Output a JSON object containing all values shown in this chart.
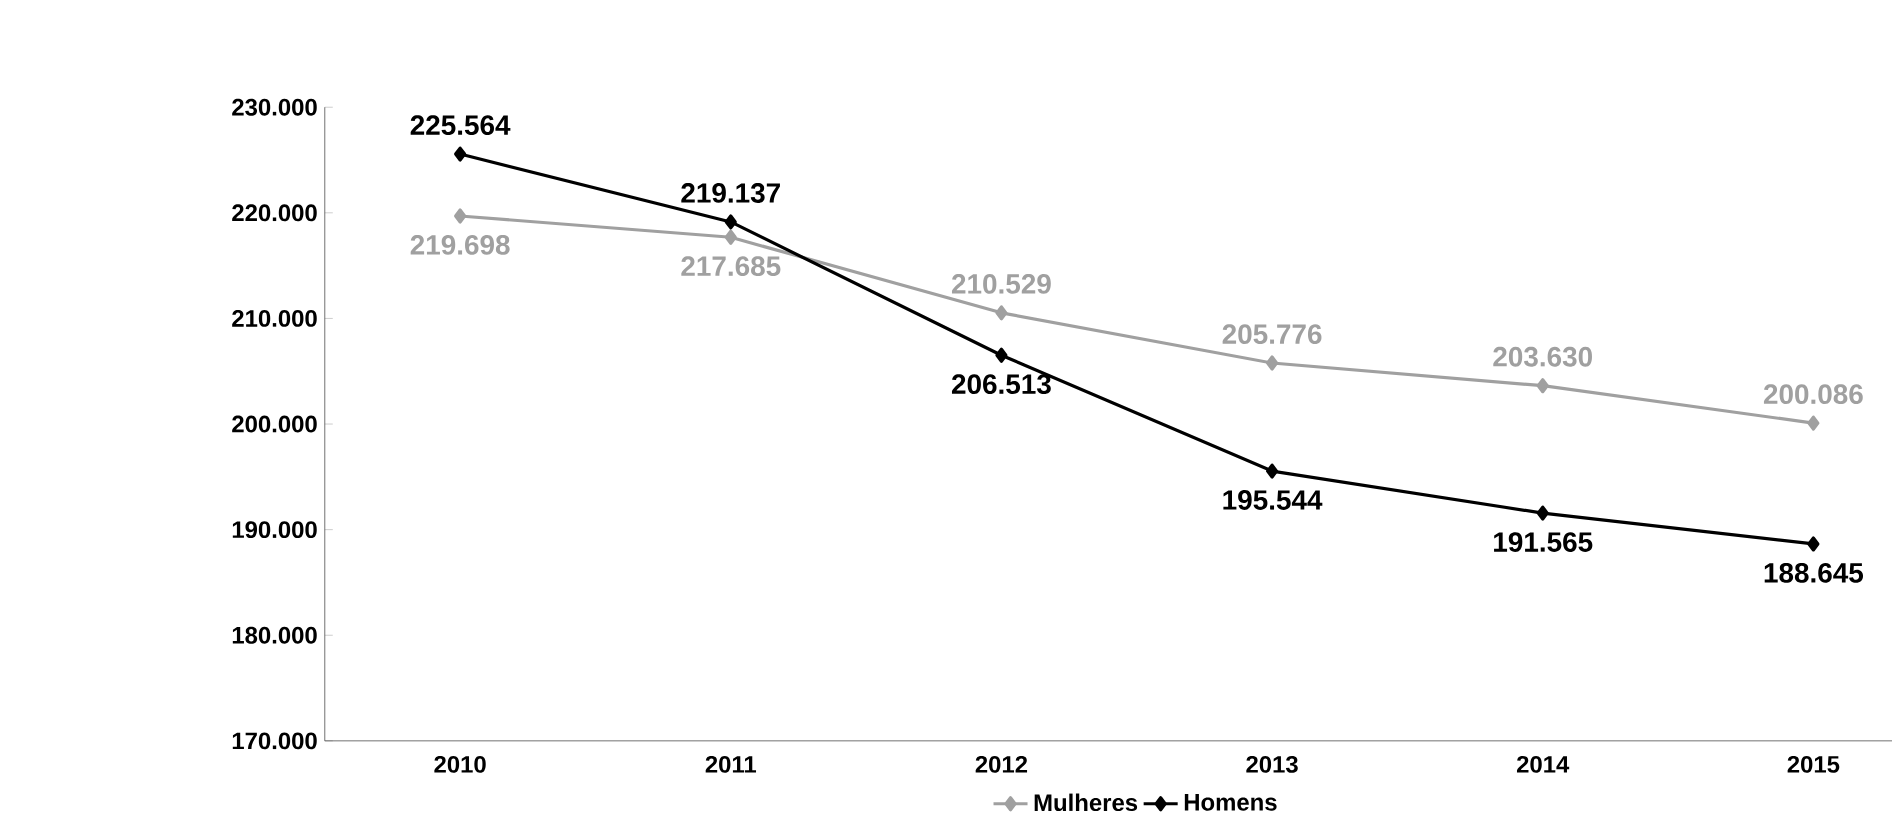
{
  "chart_data": {
    "type": "line",
    "categories": [
      "2010",
      "2011",
      "2012",
      "2013",
      "2014",
      "2015"
    ],
    "series": [
      {
        "name": "Mulheres",
        "color": "#a0a0a0",
        "values": [
          219698,
          217685,
          210529,
          205776,
          203630,
          200086
        ],
        "value_labels": [
          "219.698",
          "217.685",
          "210.529",
          "205.776",
          "203.630",
          "200.086"
        ]
      },
      {
        "name": "Homens",
        "color": "#000000",
        "values": [
          225564,
          219137,
          206513,
          195544,
          191565,
          188645
        ],
        "value_labels": [
          "225.564",
          "219.137",
          "206.513",
          "195.544",
          "191.565",
          "188.645"
        ]
      }
    ],
    "ylim": [
      170000,
      230000
    ],
    "yticks": [
      {
        "value": 170000,
        "label": "170.000"
      },
      {
        "value": 180000,
        "label": "180.000"
      },
      {
        "value": 190000,
        "label": "190.000"
      },
      {
        "value": 200000,
        "label": "200.000"
      },
      {
        "value": 210000,
        "label": "210.000"
      },
      {
        "value": 220000,
        "label": "220.000"
      },
      {
        "value": 230000,
        "label": "230.000"
      }
    ],
    "legend": "bottom",
    "marker": "diamond",
    "line_style": "solid"
  }
}
